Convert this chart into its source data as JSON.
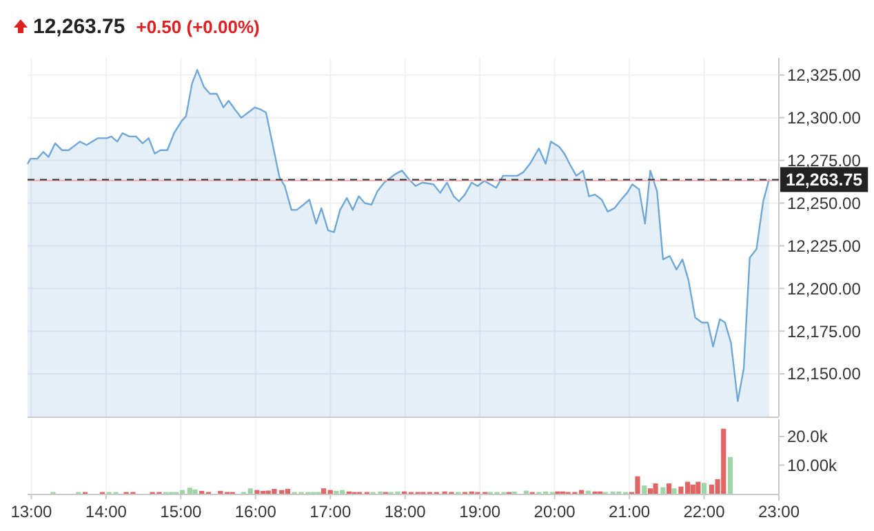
{
  "chart_data": [
    {
      "type": "area",
      "title": "12,263.75",
      "subtitle": "+0.50 (+0.00%)",
      "xlim": [
        12.95,
        23.0
      ],
      "ylim": [
        12125,
        12335
      ],
      "xticks": [
        13,
        14,
        15,
        16,
        17,
        18,
        19,
        20,
        21,
        22,
        23
      ],
      "yticks": [
        {
          "value": 12150,
          "label": "12,150.00"
        },
        {
          "value": 12175,
          "label": "12,175.00"
        },
        {
          "value": 12200,
          "label": "12,200.00"
        },
        {
          "value": 12225,
          "label": "12,225.00"
        },
        {
          "value": 12250,
          "label": "12,250.00"
        },
        {
          "value": 12275,
          "label": "12,275.00"
        },
        {
          "value": 12300,
          "label": "12,300.00"
        },
        {
          "value": 12325,
          "label": "12,325.00"
        }
      ],
      "tick_labels": "y",
      "grid": true,
      "ref_lines": [
        {
          "axis": "y",
          "value": 12263.25,
          "color": "#f4a6a6",
          "line_style": "solid"
        },
        {
          "axis": "y",
          "value": 12263.75,
          "label": "12,263.75",
          "color": "#333333",
          "line_style": "dashed"
        }
      ],
      "series": [
        {
          "color": "#6fa8d6",
          "x": [
            12.95,
            12.99,
            13.08,
            13.16,
            13.23,
            13.32,
            13.41,
            13.5,
            13.65,
            13.74,
            13.89,
            14.01,
            14.07,
            14.15,
            14.22,
            14.31,
            14.4,
            14.49,
            14.57,
            14.65,
            14.73,
            14.82,
            14.91,
            15.01,
            15.07,
            15.15,
            15.22,
            15.31,
            15.39,
            15.48,
            15.57,
            15.64,
            15.72,
            15.81,
            15.9,
            15.99,
            16.06,
            16.14,
            16.23,
            16.32,
            16.39,
            16.48,
            16.55,
            16.64,
            16.72,
            16.81,
            16.88,
            16.97,
            17.05,
            17.13,
            17.22,
            17.3,
            17.38,
            17.46,
            17.55,
            17.63,
            17.72,
            17.81,
            17.87,
            17.96,
            18.05,
            18.14,
            18.23,
            18.38,
            18.47,
            18.56,
            18.65,
            18.72,
            18.8,
            18.89,
            18.97,
            19.06,
            19.22,
            19.31,
            19.4,
            19.5,
            19.58,
            19.67,
            19.79,
            19.88,
            19.95,
            20.06,
            20.13,
            20.2,
            20.29,
            20.38,
            20.46,
            20.54,
            20.63,
            20.71,
            20.8,
            20.89,
            20.97,
            21.04,
            21.13,
            21.21,
            21.28,
            21.37,
            21.45,
            21.54,
            21.63,
            21.71,
            21.79,
            21.88,
            21.97,
            22.05,
            22.12,
            22.21,
            22.28,
            22.36,
            22.45,
            22.53,
            22.61,
            22.7,
            22.79,
            22.87
          ],
          "values": [
            12273,
            12276,
            12276,
            12280,
            12277,
            12285,
            12281,
            12281,
            12286,
            12284,
            12288,
            12288,
            12289,
            12286,
            12291,
            12289,
            12289,
            12285,
            12288,
            12279,
            12281,
            12281,
            12291,
            12298,
            12301,
            12320,
            12328,
            12318,
            12314,
            12314,
            12306,
            12310,
            12305,
            12300,
            12303,
            12306,
            12305,
            12303,
            12284,
            12265,
            12260,
            12246,
            12246,
            12249,
            12252,
            12238,
            12247,
            12234,
            12233,
            12246,
            12253,
            12246,
            12254,
            12250,
            12249,
            12257,
            12262,
            12265,
            12267,
            12269,
            12264,
            12260,
            12262,
            12261,
            12256,
            12262,
            12254,
            12251,
            12255,
            12262,
            12260,
            12263,
            12259,
            12266,
            12266,
            12266,
            12268,
            12273,
            12282,
            12273,
            12286,
            12283,
            12279,
            12273,
            12266,
            12269,
            12254,
            12255,
            12252,
            12245,
            12247,
            12252,
            12256,
            12261,
            12258,
            12238,
            12269,
            12257,
            12217,
            12219,
            12211,
            12217,
            12205,
            12183,
            12180,
            12180,
            12166,
            12182,
            12180,
            12168,
            12134,
            12153,
            12218,
            12223,
            12251,
            12264
          ]
        }
      ]
    },
    {
      "type": "bar",
      "xlim": [
        12.95,
        23.0
      ],
      "ylim": [
        0,
        26000
      ],
      "xticks": [
        {
          "value": 13,
          "label": "13:00"
        },
        {
          "value": 14,
          "label": "14:00"
        },
        {
          "value": 15,
          "label": "15:00"
        },
        {
          "value": 16,
          "label": "16:00"
        },
        {
          "value": 17,
          "label": "17:00"
        },
        {
          "value": 18,
          "label": "18:00"
        },
        {
          "value": 19,
          "label": "19:00"
        },
        {
          "value": 20,
          "label": "20:00"
        },
        {
          "value": 21,
          "label": "21:00"
        },
        {
          "value": 22,
          "label": "22:00"
        },
        {
          "value": 23,
          "label": "23:00"
        }
      ],
      "yticks": [
        {
          "value": 10000,
          "label": "10.00k"
        },
        {
          "value": 20000,
          "label": "20.0k"
        }
      ],
      "grid": "x",
      "series": [
        {
          "color": "#9fd6a8",
          "x": [
            13.29,
            13.63,
            14.04,
            14.13,
            14.8,
            14.87,
            14.94,
            15.02,
            15.12,
            15.19,
            15.84,
            15.93,
            16.52,
            16.61,
            16.7,
            16.77,
            16.84,
            17.08,
            17.16,
            17.57,
            17.67,
            17.81,
            17.9,
            18.71,
            19.14,
            19.23,
            19.32,
            19.46,
            19.62,
            19.79,
            19.88,
            19.97,
            20.45,
            20.68,
            20.78,
            20.86,
            20.95,
            21.2,
            21.45,
            21.6,
            22.0,
            22.35
          ],
          "values": [
            600,
            600,
            600,
            600,
            600,
            600,
            600,
            1300,
            2100,
            1500,
            600,
            1900,
            600,
            600,
            600,
            600,
            600,
            1000,
            1300,
            600,
            800,
            600,
            800,
            600,
            600,
            600,
            600,
            800,
            1100,
            600,
            800,
            600,
            1100,
            600,
            800,
            800,
            600,
            2900,
            2300,
            1900,
            3800,
            12800
          ]
        },
        {
          "color": "#e06666",
          "x": [
            13.72,
            13.95,
            14.27,
            14.36,
            14.62,
            14.71,
            15.28,
            15.37,
            15.53,
            15.62,
            15.69,
            16.02,
            16.1,
            16.17,
            16.25,
            16.35,
            16.43,
            16.91,
            17.0,
            17.25,
            17.32,
            17.39,
            17.49,
            17.74,
            17.99,
            18.08,
            18.17,
            18.24,
            18.33,
            18.42,
            18.53,
            18.62,
            18.8,
            18.89,
            18.97,
            19.07,
            19.39,
            19.7,
            20.04,
            20.11,
            20.18,
            20.27,
            20.36,
            20.54,
            20.61,
            21.03,
            21.11,
            21.28,
            21.35,
            21.53,
            21.69,
            21.78,
            21.85,
            21.92,
            22.1,
            22.18,
            22.26
          ],
          "values": [
            600,
            600,
            600,
            600,
            600,
            600,
            1000,
            600,
            1000,
            600,
            600,
            1300,
            1000,
            1100,
            1700,
            1300,
            1700,
            1900,
            1300,
            800,
            600,
            600,
            600,
            600,
            800,
            600,
            600,
            600,
            600,
            600,
            800,
            600,
            600,
            800,
            600,
            600,
            600,
            600,
            800,
            800,
            600,
            600,
            1300,
            800,
            800,
            600,
            6100,
            1900,
            3600,
            3600,
            2500,
            4200,
            3200,
            4200,
            3200,
            5100,
            22700
          ]
        }
      ]
    }
  ]
}
